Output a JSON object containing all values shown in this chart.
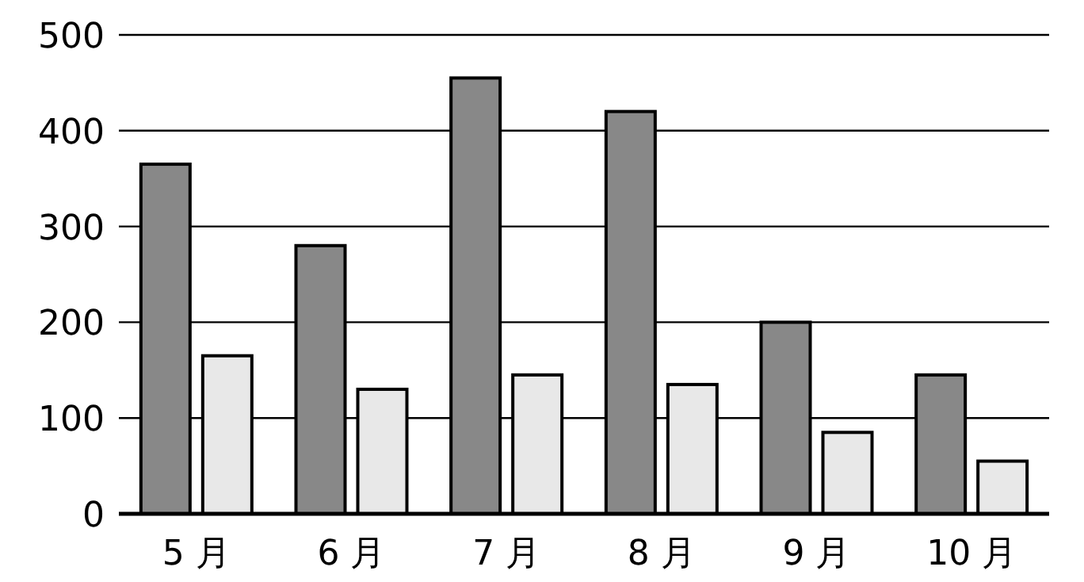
{
  "chart_data": {
    "type": "bar",
    "categories": [
      "5 月",
      "6 月",
      "7 月",
      "8 月",
      "9 月",
      "10 月"
    ],
    "series": [
      {
        "color": "#888888",
        "values": [
          365,
          280,
          455,
          420,
          200,
          145
        ]
      },
      {
        "color": "#e8e8e8",
        "values": [
          165,
          130,
          145,
          135,
          85,
          55
        ]
      }
    ],
    "ylim": [
      0,
      500
    ],
    "yticks": [
      0,
      100,
      200,
      300,
      400,
      500
    ],
    "grid": "y"
  }
}
